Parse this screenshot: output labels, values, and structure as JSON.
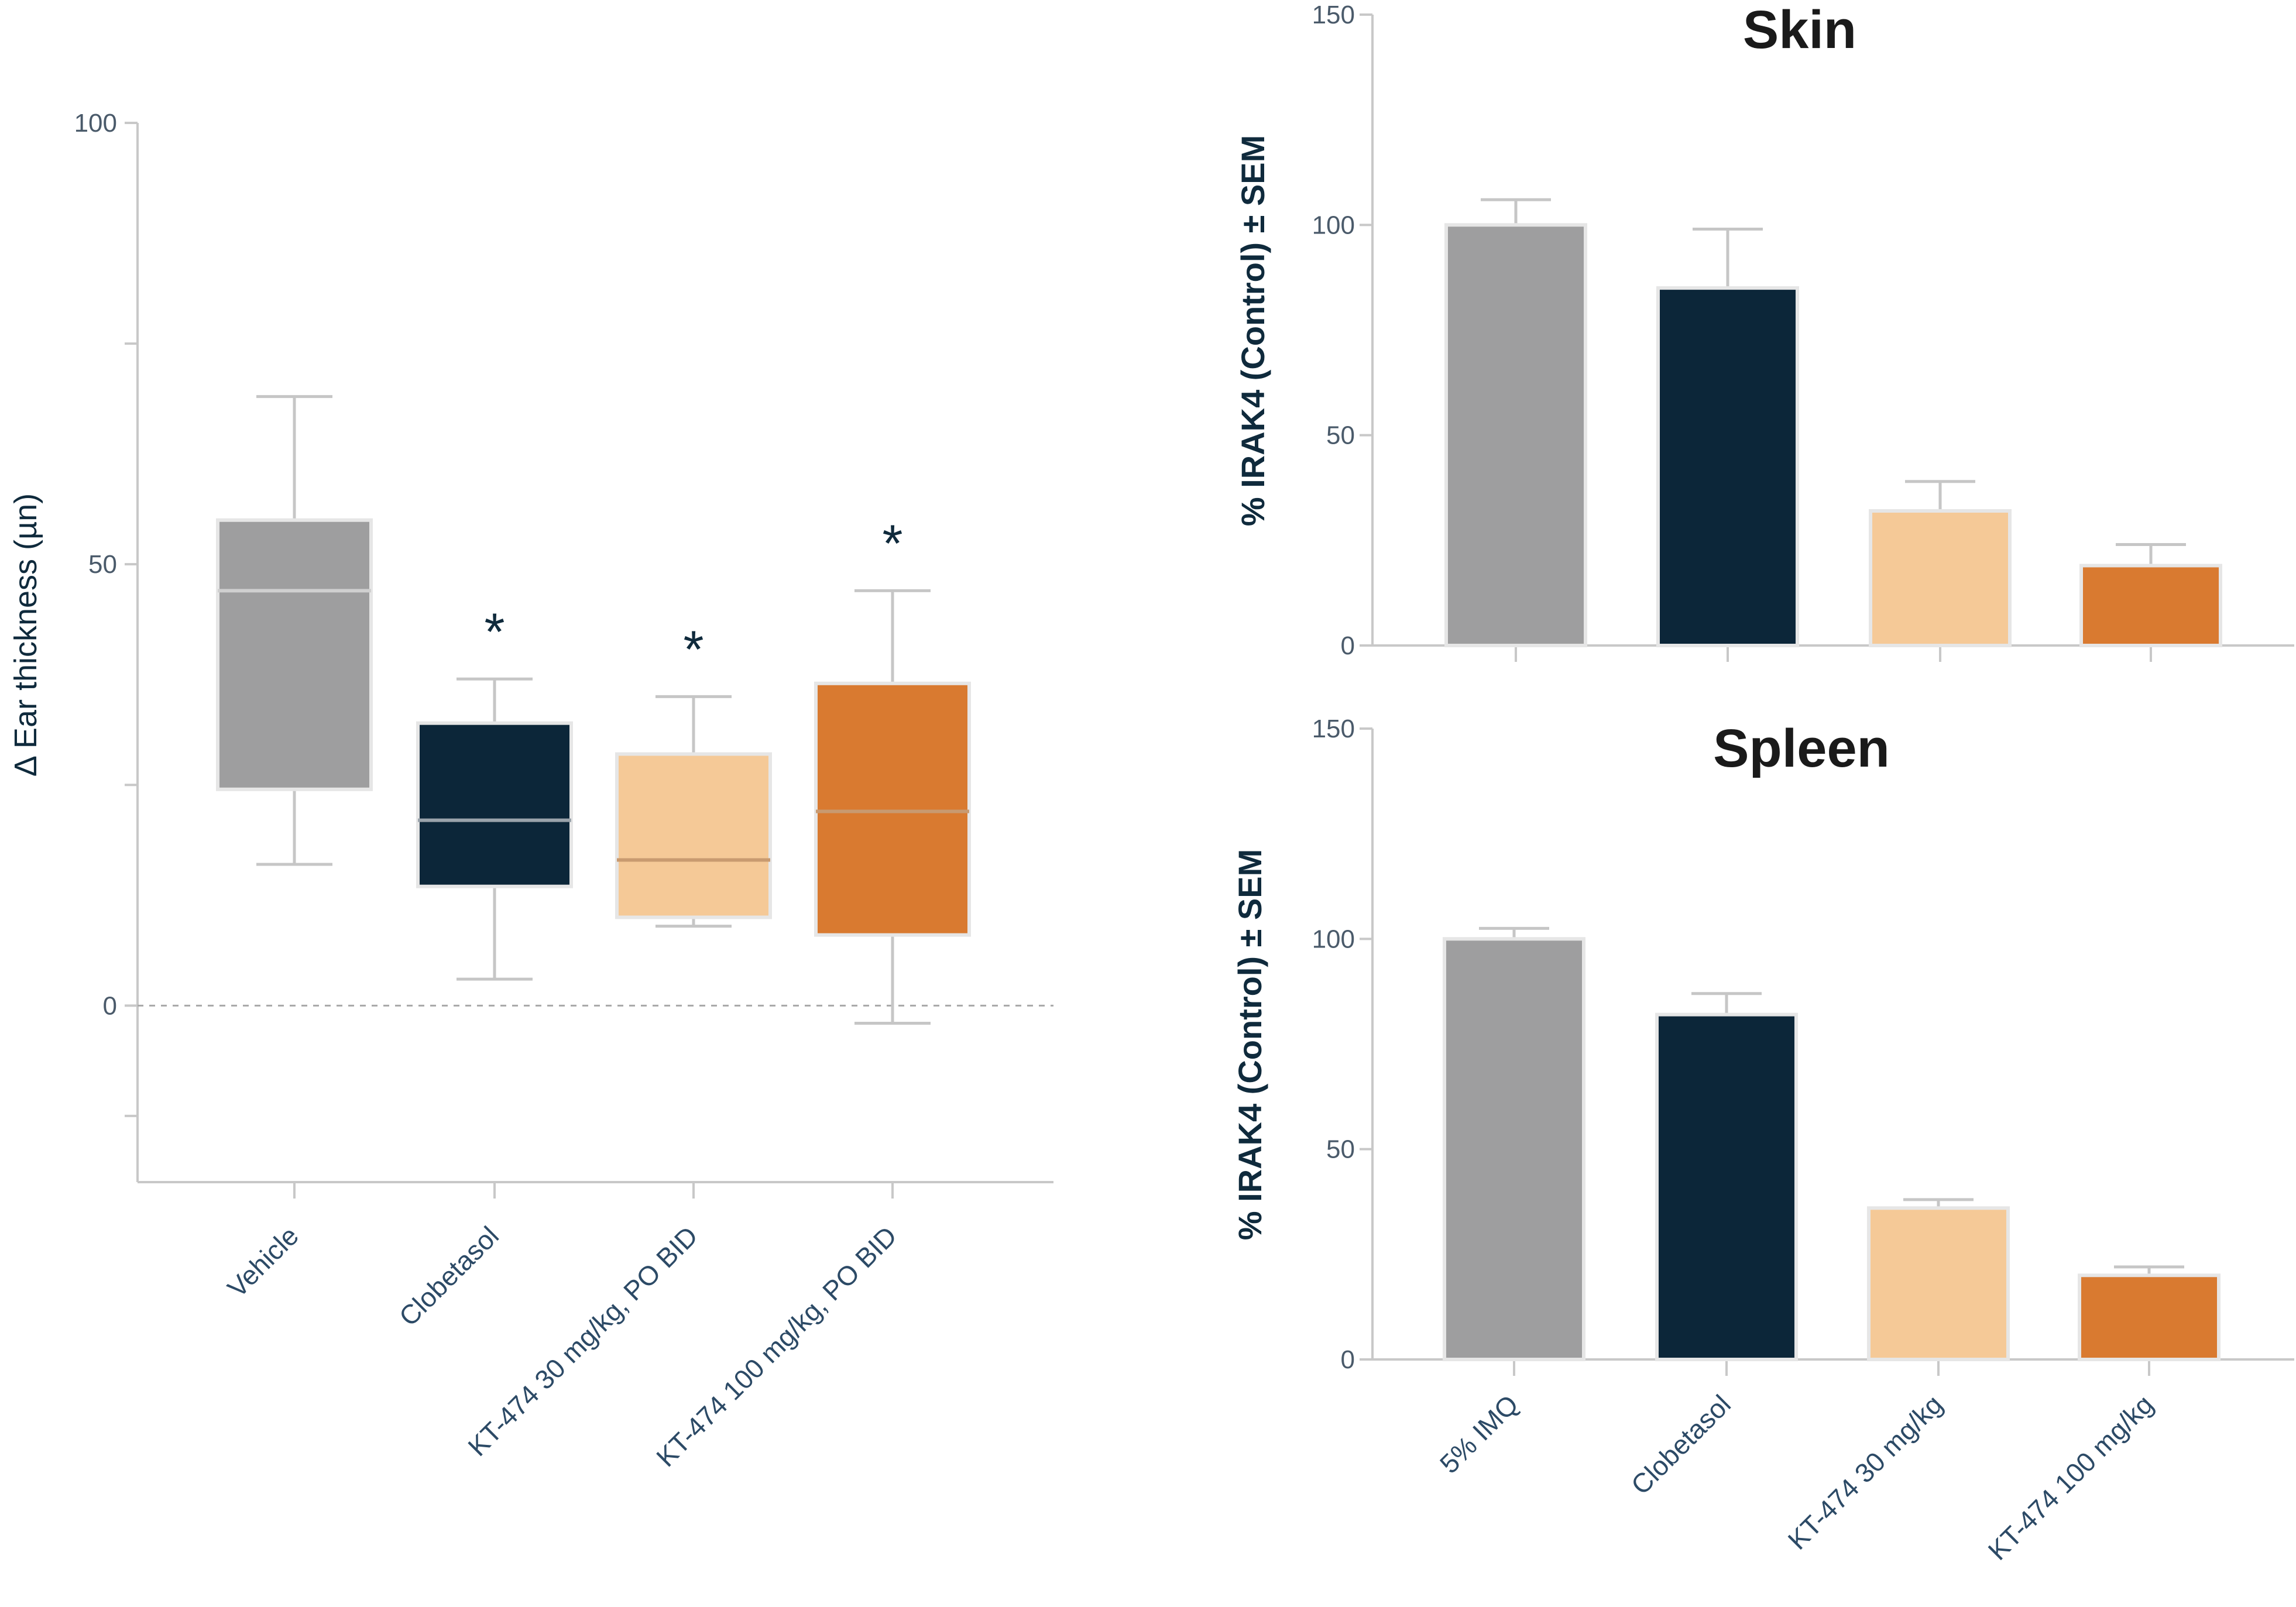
{
  "colors": {
    "gray": "#9e9e9f",
    "navy": "#0c2639",
    "peach": "#f5c997",
    "orange": "#d97a30",
    "axis": "#c8c8c8",
    "median_light": "#cfcfcf",
    "median_dark": "#9aa3ab"
  },
  "chart_data": [
    {
      "id": "ear",
      "type": "box",
      "title": "",
      "xlabel": "",
      "ylabel": "Δ Ear thickness (µn)",
      "ylim": [
        -20,
        100
      ],
      "yticks": [
        "100",
        "50",
        "0"
      ],
      "yticks_values": [
        100,
        50,
        0
      ],
      "reference_line": 0,
      "categories": [
        "Vehicle",
        "Clobetasol",
        "KT-474 30 mg/kg, PO BID",
        "KT-474 100 mg/kg, PO BID"
      ],
      "boxes": [
        {
          "min": 16,
          "q1": 24.5,
          "median": 47,
          "q3": 55,
          "max": 69,
          "color": "gray",
          "sig": ""
        },
        {
          "min": 3,
          "q1": 13.5,
          "median": 21,
          "q3": 32,
          "max": 37,
          "color": "navy",
          "sig": "*"
        },
        {
          "min": 9,
          "q1": 10,
          "median": 16.5,
          "q3": 28.5,
          "max": 35,
          "color": "peach",
          "sig": "*"
        },
        {
          "min": -2,
          "q1": 8,
          "median": 22,
          "q3": 36.5,
          "max": 47,
          "color": "orange",
          "sig": "*"
        }
      ]
    },
    {
      "id": "skin",
      "type": "bar",
      "title": "Skin",
      "ylabel": "% IRAK4 (Control) ± SEM",
      "ylim": [
        0,
        150
      ],
      "yticks": [
        "150",
        "100",
        "50",
        "0"
      ],
      "yticks_values": [
        150,
        100,
        50,
        0
      ],
      "categories": [
        "5% IMQ",
        "Clobetasol",
        "KT-474 30 mg/kg",
        "KT-474 100 mg/kg"
      ],
      "values": [
        100,
        85,
        32,
        19
      ],
      "errors": [
        6,
        14,
        7,
        5
      ],
      "colors": [
        "gray",
        "navy",
        "peach",
        "orange"
      ]
    },
    {
      "id": "spleen",
      "type": "bar",
      "title": "Spleen",
      "ylabel": "% IRAK4 (Control) ± SEM",
      "ylim": [
        0,
        150
      ],
      "yticks": [
        "150",
        "100",
        "50",
        "0"
      ],
      "yticks_values": [
        150,
        100,
        50,
        0
      ],
      "categories": [
        "5% IMQ",
        "Clobetasol",
        "KT-474  30 mg/kg",
        "KT-474 100 mg/kg"
      ],
      "values": [
        100,
        82,
        36,
        20
      ],
      "errors": [
        2.5,
        5,
        2,
        2
      ],
      "colors": [
        "gray",
        "navy",
        "peach",
        "orange"
      ]
    }
  ]
}
